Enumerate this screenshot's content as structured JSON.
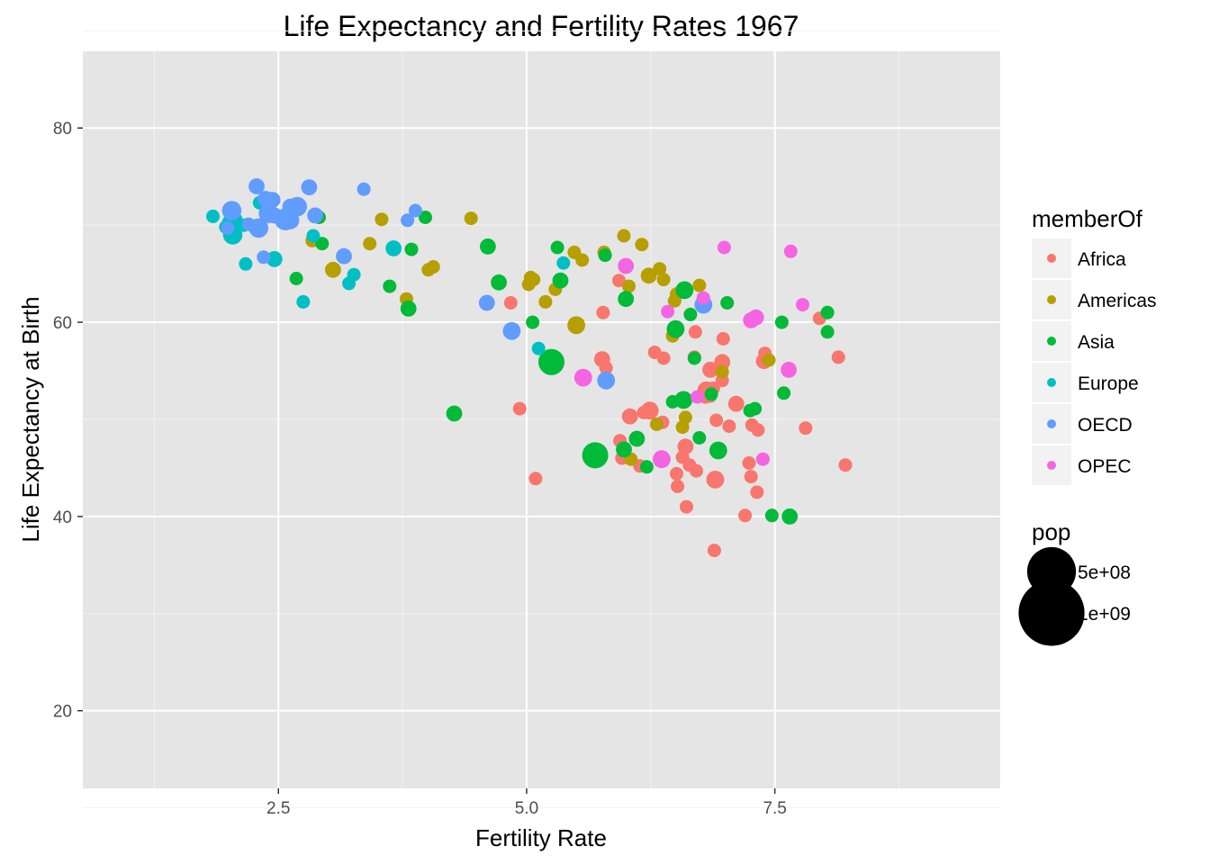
{
  "chart_data": {
    "type": "scatter",
    "title": "Life Expectancy and Fertility Rates 1967",
    "xlabel": "Fertility Rate",
    "ylabel": "Life Expectancy at Birth",
    "xlim": [
      0.53,
      9.77
    ],
    "ylim": [
      12.0,
      87.9
    ],
    "x_ticks": [
      2.5,
      5.0,
      7.5
    ],
    "x_tick_labels": [
      "2.5",
      "5.0",
      "7.5"
    ],
    "y_ticks": [
      20,
      40,
      60,
      80
    ],
    "y_tick_labels": [
      "20",
      "40",
      "60",
      "80"
    ],
    "grid": true,
    "background": "#e5e5e5",
    "legend_position": "right",
    "color_legend": {
      "title": "memberOf",
      "entries": [
        {
          "name": "Africa",
          "color": "#F8766D"
        },
        {
          "name": "Americas",
          "color": "#B79F00"
        },
        {
          "name": "Asia",
          "color": "#00BA38"
        },
        {
          "name": "Europe",
          "color": "#00BFC4"
        },
        {
          "name": "OECD",
          "color": "#619CFF"
        },
        {
          "name": "OPEC",
          "color": "#F564E3"
        }
      ]
    },
    "size_legend": {
      "title": "pop",
      "entries": [
        {
          "label": "5e+08",
          "value": 500000000
        },
        {
          "label": "1e+09",
          "value": 1000000000
        }
      ]
    },
    "series": [
      {
        "name": "Africa",
        "points": [
          [
            4.84,
            62.0,
            10
          ],
          [
            4.93,
            51.1,
            10
          ],
          [
            5.09,
            43.9,
            10
          ],
          [
            5.77,
            61.0,
            10
          ],
          [
            5.76,
            56.2,
            20
          ],
          [
            5.8,
            55.3,
            10
          ],
          [
            5.93,
            64.3,
            10
          ],
          [
            5.94,
            47.8,
            10
          ],
          [
            5.96,
            46.0,
            10
          ],
          [
            6.04,
            50.3,
            20
          ],
          [
            6.14,
            45.2,
            10
          ],
          [
            6.18,
            50.7,
            10
          ],
          [
            6.24,
            50.9,
            30
          ],
          [
            6.29,
            56.9,
            10
          ],
          [
            6.37,
            49.7,
            10
          ],
          [
            6.38,
            56.3,
            10
          ],
          [
            6.51,
            44.4,
            10
          ],
          [
            6.52,
            43.1,
            10
          ],
          [
            6.57,
            46.1,
            10
          ],
          [
            6.6,
            47.2,
            20
          ],
          [
            6.61,
            41.0,
            10
          ],
          [
            6.64,
            45.3,
            10
          ],
          [
            6.69,
            56.4,
            10
          ],
          [
            6.7,
            59.0,
            10
          ],
          [
            6.71,
            44.7,
            10
          ],
          [
            6.8,
            52.3,
            10
          ],
          [
            6.81,
            53.0,
            30
          ],
          [
            6.85,
            52.4,
            10
          ],
          [
            6.85,
            55.1,
            20
          ],
          [
            6.88,
            53.2,
            10
          ],
          [
            6.89,
            36.5,
            10
          ],
          [
            6.9,
            43.8,
            30
          ],
          [
            6.91,
            49.9,
            10
          ],
          [
            6.97,
            54.0,
            10
          ],
          [
            6.97,
            55.9,
            20
          ],
          [
            6.98,
            58.3,
            10
          ],
          [
            7.04,
            49.3,
            10
          ],
          [
            7.11,
            51.6,
            20
          ],
          [
            7.2,
            40.1,
            10
          ],
          [
            7.24,
            45.5,
            10
          ],
          [
            7.26,
            44.1,
            10
          ],
          [
            7.27,
            49.4,
            10
          ],
          [
            7.32,
            42.5,
            10
          ],
          [
            7.33,
            48.9,
            10
          ],
          [
            7.39,
            56.0,
            20
          ],
          [
            7.4,
            56.8,
            10
          ],
          [
            7.81,
            49.1,
            10
          ],
          [
            7.95,
            60.4,
            10
          ],
          [
            8.14,
            56.4,
            10
          ],
          [
            8.21,
            45.3,
            10
          ]
        ]
      },
      {
        "name": "Americas",
        "points": [
          [
            2.84,
            68.4,
            10
          ],
          [
            3.05,
            65.4,
            20
          ],
          [
            3.42,
            68.1,
            10
          ],
          [
            3.54,
            70.6,
            10
          ],
          [
            3.79,
            62.4,
            10
          ],
          [
            4.01,
            65.4,
            10
          ],
          [
            4.06,
            65.7,
            10
          ],
          [
            4.44,
            70.7,
            10
          ],
          [
            5.02,
            63.9,
            10
          ],
          [
            5.04,
            64.6,
            10
          ],
          [
            5.07,
            64.4,
            10
          ],
          [
            5.19,
            62.1,
            10
          ],
          [
            5.29,
            63.4,
            10
          ],
          [
            5.48,
            67.2,
            10
          ],
          [
            5.5,
            59.7,
            30
          ],
          [
            5.56,
            66.4,
            10
          ],
          [
            5.78,
            67.2,
            10
          ],
          [
            5.98,
            68.9,
            10
          ],
          [
            6.03,
            63.7,
            10
          ],
          [
            6.05,
            45.9,
            10
          ],
          [
            6.16,
            68.0,
            10
          ],
          [
            6.23,
            64.8,
            20
          ],
          [
            6.31,
            49.5,
            10
          ],
          [
            6.34,
            65.5,
            10
          ],
          [
            6.38,
            64.4,
            10
          ],
          [
            6.47,
            58.6,
            10
          ],
          [
            6.49,
            62.2,
            10
          ],
          [
            6.51,
            62.9,
            10
          ],
          [
            6.57,
            49.2,
            10
          ],
          [
            6.59,
            63.3,
            10
          ],
          [
            6.6,
            50.2,
            10
          ],
          [
            6.74,
            63.8,
            10
          ],
          [
            6.97,
            54.9,
            10
          ],
          [
            7.44,
            56.1,
            10
          ]
        ]
      },
      {
        "name": "Asia",
        "points": [
          [
            2.32,
            72.3,
            10
          ],
          [
            2.91,
            70.8,
            10
          ],
          [
            2.94,
            68.1,
            10
          ],
          [
            2.68,
            64.5,
            10
          ],
          [
            3.62,
            63.7,
            10
          ],
          [
            3.81,
            61.4,
            20
          ],
          [
            3.84,
            67.5,
            10
          ],
          [
            3.98,
            70.8,
            10
          ],
          [
            4.27,
            50.6,
            20
          ],
          [
            4.61,
            67.8,
            20
          ],
          [
            4.72,
            64.1,
            20
          ],
          [
            5.06,
            60.0,
            10
          ],
          [
            5.25,
            55.9,
            100
          ],
          [
            5.31,
            67.7,
            10
          ],
          [
            5.34,
            64.3,
            20
          ],
          [
            5.69,
            46.3,
            100
          ],
          [
            5.79,
            66.9,
            10
          ],
          [
            5.98,
            46.9,
            20
          ],
          [
            6.0,
            62.4,
            20
          ],
          [
            6.11,
            48.0,
            20
          ],
          [
            6.21,
            45.1,
            10
          ],
          [
            6.47,
            51.8,
            10
          ],
          [
            6.5,
            59.3,
            30
          ],
          [
            6.58,
            52.0,
            30
          ],
          [
            6.59,
            63.3,
            30
          ],
          [
            6.65,
            60.8,
            10
          ],
          [
            6.69,
            56.3,
            10
          ],
          [
            6.74,
            48.1,
            10
          ],
          [
            6.86,
            52.6,
            10
          ],
          [
            6.93,
            46.8,
            30
          ],
          [
            7.02,
            62.0,
            10
          ],
          [
            7.25,
            50.9,
            10
          ],
          [
            7.3,
            51.1,
            10
          ],
          [
            7.47,
            40.1,
            10
          ],
          [
            7.57,
            60.0,
            10
          ],
          [
            7.59,
            52.7,
            10
          ],
          [
            7.65,
            40.0,
            20
          ],
          [
            8.03,
            61.0,
            10
          ],
          [
            8.03,
            59.0,
            10
          ]
        ]
      },
      {
        "name": "Europe",
        "points": [
          [
            1.84,
            70.9,
            10
          ],
          [
            1.97,
            69.8,
            10
          ],
          [
            2.02,
            70.2,
            30
          ],
          [
            2.04,
            69.0,
            40
          ],
          [
            2.07,
            70.6,
            10
          ],
          [
            2.15,
            70.0,
            10
          ],
          [
            2.17,
            66.0,
            10
          ],
          [
            2.25,
            69.9,
            10
          ],
          [
            2.31,
            72.3,
            10
          ],
          [
            2.4,
            72.6,
            20
          ],
          [
            2.46,
            66.5,
            20
          ],
          [
            2.75,
            62.1,
            10
          ],
          [
            2.85,
            68.9,
            10
          ],
          [
            3.21,
            64.0,
            10
          ],
          [
            3.26,
            64.9,
            10
          ],
          [
            3.66,
            67.6,
            20
          ],
          [
            5.12,
            57.3,
            10
          ],
          [
            5.37,
            66.1,
            10
          ]
        ]
      },
      {
        "name": "OECD",
        "points": [
          [
            1.99,
            69.7,
            10
          ],
          [
            2.03,
            71.5,
            40
          ],
          [
            2.2,
            70.1,
            10
          ],
          [
            2.28,
            74.0,
            20
          ],
          [
            2.3,
            69.7,
            40
          ],
          [
            2.35,
            66.7,
            10
          ],
          [
            2.37,
            72.7,
            20
          ],
          [
            2.4,
            71.2,
            40
          ],
          [
            2.44,
            72.6,
            20
          ],
          [
            2.46,
            71.0,
            20
          ],
          [
            2.57,
            70.6,
            60
          ],
          [
            2.62,
            71.9,
            20
          ],
          [
            2.62,
            70.5,
            30
          ],
          [
            2.69,
            71.9,
            40
          ],
          [
            2.81,
            73.9,
            20
          ],
          [
            2.87,
            71.0,
            20
          ],
          [
            3.16,
            66.8,
            20
          ],
          [
            3.36,
            73.7,
            10
          ],
          [
            3.8,
            70.5,
            10
          ],
          [
            3.88,
            71.5,
            10
          ],
          [
            4.6,
            62.0,
            20
          ],
          [
            4.85,
            59.1,
            30
          ],
          [
            5.8,
            54.0,
            30
          ],
          [
            6.78,
            61.8,
            30
          ]
        ]
      },
      {
        "name": "OPEC",
        "points": [
          [
            5.57,
            54.3,
            30
          ],
          [
            6.0,
            65.8,
            20
          ],
          [
            6.36,
            45.9,
            30
          ],
          [
            6.42,
            61.1,
            10
          ],
          [
            6.72,
            52.3,
            10
          ],
          [
            6.78,
            62.5,
            10
          ],
          [
            6.99,
            67.7,
            10
          ],
          [
            7.26,
            60.2,
            20
          ],
          [
            7.31,
            60.5,
            20
          ],
          [
            7.38,
            45.9,
            10
          ],
          [
            7.64,
            55.1,
            20
          ],
          [
            7.66,
            67.3,
            10
          ],
          [
            7.78,
            61.8,
            10
          ]
        ]
      }
    ]
  }
}
